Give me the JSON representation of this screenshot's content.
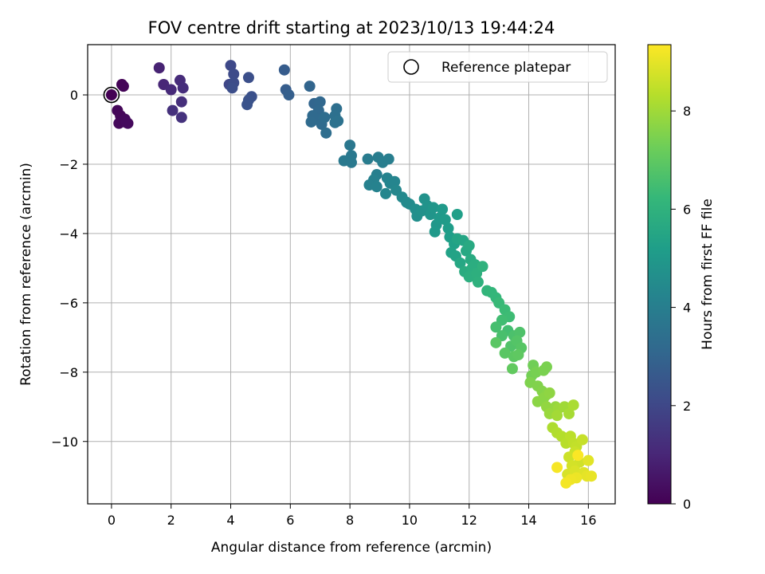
{
  "chart_data": {
    "type": "scatter",
    "title": "FOV centre drift starting at 2023/10/13 19:44:24",
    "xlabel": "Angular distance from reference (arcmin)",
    "ylabel": "Rotation from reference (arcmin)",
    "xlim": [
      -0.8,
      16.9
    ],
    "ylim": [
      -11.8,
      1.45
    ],
    "xticks": [
      0,
      2,
      4,
      6,
      8,
      10,
      12,
      14,
      16
    ],
    "yticks": [
      0,
      -2,
      -4,
      -6,
      -8,
      -10
    ],
    "xtick_labels": [
      "0",
      "2",
      "4",
      "6",
      "8",
      "10",
      "12",
      "14",
      "16"
    ],
    "ytick_labels": [
      "0",
      "−2",
      "−4",
      "−6",
      "−8",
      "−10"
    ],
    "grid": true,
    "legend": {
      "position": "top-right",
      "entries": [
        "Reference platepar"
      ]
    },
    "reference_point": {
      "x": 0,
      "y": 0,
      "label": "Reference platepar"
    },
    "colorbar": {
      "label": "Hours from first FF file",
      "range": [
        0,
        9.35
      ],
      "ticks": [
        0,
        2,
        4,
        6,
        8
      ],
      "tick_labels": [
        "0",
        "2",
        "4",
        "6",
        "8"
      ],
      "colormap": "viridis",
      "colors": [
        "#440154",
        "#482878",
        "#3e4a89",
        "#31688e",
        "#26828e",
        "#1f9e89",
        "#35b779",
        "#6ece58",
        "#b5de2b",
        "#fde725"
      ]
    },
    "series": [
      {
        "values": [
          [
            0.0,
            0.0,
            0.0
          ],
          [
            0.35,
            0.3,
            0.05
          ],
          [
            0.4,
            0.25,
            0.08
          ],
          [
            0.2,
            -0.45,
            0.12
          ],
          [
            0.3,
            -0.6,
            0.15
          ],
          [
            0.25,
            -0.82,
            0.18
          ],
          [
            0.45,
            -0.7,
            0.2
          ],
          [
            0.55,
            -0.82,
            0.22
          ],
          [
            0.5,
            -0.8,
            0.25
          ],
          [
            1.6,
            0.78,
            0.9
          ],
          [
            1.75,
            0.3,
            1.0
          ],
          [
            2.0,
            0.15,
            1.1
          ],
          [
            2.3,
            0.42,
            1.15
          ],
          [
            2.4,
            0.2,
            1.2
          ],
          [
            2.35,
            -0.2,
            1.25
          ],
          [
            2.05,
            -0.45,
            1.3
          ],
          [
            2.35,
            -0.65,
            1.35
          ],
          [
            3.95,
            0.3,
            2.0
          ],
          [
            4.0,
            0.85,
            2.05
          ],
          [
            4.1,
            0.6,
            2.1
          ],
          [
            4.1,
            0.35,
            2.15
          ],
          [
            4.05,
            0.2,
            2.2
          ],
          [
            4.6,
            0.5,
            2.25
          ],
          [
            4.7,
            -0.05,
            2.3
          ],
          [
            4.6,
            -0.15,
            2.35
          ],
          [
            4.55,
            -0.28,
            2.4
          ],
          [
            5.8,
            0.72,
            2.7
          ],
          [
            5.85,
            0.15,
            2.75
          ],
          [
            5.95,
            0.0,
            2.8
          ],
          [
            6.65,
            0.25,
            3.0
          ],
          [
            6.8,
            -0.25,
            3.05
          ],
          [
            7.0,
            -0.2,
            3.1
          ],
          [
            6.95,
            -0.45,
            3.15
          ],
          [
            6.75,
            -0.6,
            3.2
          ],
          [
            6.9,
            -0.7,
            3.2
          ],
          [
            6.7,
            -0.78,
            3.25
          ],
          [
            7.05,
            -0.85,
            3.25
          ],
          [
            7.15,
            -0.65,
            3.3
          ],
          [
            7.2,
            -1.1,
            3.35
          ],
          [
            7.55,
            -0.4,
            3.4
          ],
          [
            7.5,
            -0.6,
            3.45
          ],
          [
            7.6,
            -0.75,
            3.5
          ],
          [
            7.5,
            -0.8,
            3.5
          ],
          [
            8.0,
            -1.45,
            3.7
          ],
          [
            8.05,
            -1.75,
            3.75
          ],
          [
            7.8,
            -1.9,
            3.8
          ],
          [
            8.05,
            -1.95,
            3.8
          ],
          [
            8.6,
            -1.85,
            3.9
          ],
          [
            8.95,
            -1.8,
            3.95
          ],
          [
            9.1,
            -1.95,
            4.0
          ],
          [
            9.3,
            -1.85,
            4.0
          ],
          [
            8.9,
            -2.3,
            4.05
          ],
          [
            8.8,
            -2.45,
            4.1
          ],
          [
            8.65,
            -2.6,
            4.1
          ],
          [
            8.9,
            -2.65,
            4.15
          ],
          [
            9.25,
            -2.4,
            4.2
          ],
          [
            9.35,
            -2.55,
            4.25
          ],
          [
            9.5,
            -2.5,
            4.25
          ],
          [
            9.2,
            -2.85,
            4.3
          ],
          [
            9.55,
            -2.75,
            4.35
          ],
          [
            9.75,
            -2.95,
            4.4
          ],
          [
            9.9,
            -3.1,
            4.45
          ],
          [
            10.0,
            -3.15,
            4.5
          ],
          [
            10.2,
            -3.3,
            4.6
          ],
          [
            10.25,
            -3.5,
            4.65
          ],
          [
            10.4,
            -3.35,
            4.7
          ],
          [
            10.5,
            -3.0,
            4.75
          ],
          [
            10.6,
            -3.2,
            4.8
          ],
          [
            10.7,
            -3.45,
            4.85
          ],
          [
            10.8,
            -3.25,
            4.9
          ],
          [
            10.9,
            -3.75,
            4.95
          ],
          [
            10.85,
            -3.95,
            5.0
          ],
          [
            11.0,
            -3.55,
            5.0
          ],
          [
            11.1,
            -3.3,
            5.05
          ],
          [
            11.2,
            -3.6,
            5.1
          ],
          [
            11.3,
            -3.85,
            5.15
          ],
          [
            11.35,
            -4.1,
            5.2
          ],
          [
            11.6,
            -3.45,
            5.25
          ],
          [
            11.5,
            -4.3,
            5.3
          ],
          [
            11.4,
            -4.55,
            5.35
          ],
          [
            11.55,
            -4.65,
            5.4
          ],
          [
            11.6,
            -4.15,
            5.45
          ],
          [
            11.8,
            -4.2,
            5.5
          ],
          [
            11.7,
            -4.85,
            5.55
          ],
          [
            11.9,
            -4.5,
            5.6
          ],
          [
            12.0,
            -4.35,
            5.65
          ],
          [
            12.05,
            -4.75,
            5.7
          ],
          [
            11.85,
            -5.1,
            5.75
          ],
          [
            12.1,
            -5.0,
            5.8
          ],
          [
            12.2,
            -4.9,
            5.8
          ],
          [
            12.0,
            -5.25,
            5.85
          ],
          [
            12.25,
            -5.15,
            5.9
          ],
          [
            12.3,
            -5.4,
            5.95
          ],
          [
            12.45,
            -4.95,
            6.0
          ],
          [
            12.6,
            -5.65,
            6.1
          ],
          [
            12.75,
            -5.7,
            6.15
          ],
          [
            12.9,
            -5.85,
            6.2
          ],
          [
            13.0,
            -6.0,
            6.3
          ],
          [
            13.2,
            -6.2,
            6.35
          ],
          [
            13.35,
            -6.4,
            6.4
          ],
          [
            13.1,
            -6.5,
            6.45
          ],
          [
            13.3,
            -6.8,
            6.5
          ],
          [
            12.9,
            -6.7,
            6.55
          ],
          [
            13.1,
            -6.95,
            6.6
          ],
          [
            13.5,
            -6.95,
            6.65
          ],
          [
            13.7,
            -6.85,
            6.7
          ],
          [
            13.4,
            -7.25,
            6.75
          ],
          [
            13.6,
            -7.1,
            6.8
          ],
          [
            13.75,
            -7.3,
            6.85
          ],
          [
            12.9,
            -7.15,
            6.9
          ],
          [
            13.2,
            -7.45,
            6.9
          ],
          [
            13.5,
            -7.55,
            6.95
          ],
          [
            13.65,
            -7.5,
            7.0
          ],
          [
            13.45,
            -7.9,
            7.05
          ],
          [
            14.15,
            -7.8,
            7.3
          ],
          [
            14.1,
            -8.1,
            7.35
          ],
          [
            14.25,
            -8.0,
            7.4
          ],
          [
            14.5,
            -7.95,
            7.45
          ],
          [
            14.6,
            -7.85,
            7.45
          ],
          [
            14.05,
            -8.3,
            7.5
          ],
          [
            14.3,
            -8.4,
            7.55
          ],
          [
            14.45,
            -8.55,
            7.6
          ],
          [
            14.6,
            -8.65,
            7.65
          ],
          [
            14.3,
            -8.85,
            7.7
          ],
          [
            14.5,
            -8.75,
            7.7
          ],
          [
            14.7,
            -8.6,
            7.75
          ],
          [
            14.6,
            -9.0,
            7.8
          ],
          [
            14.9,
            -9.0,
            7.85
          ],
          [
            14.7,
            -9.2,
            7.9
          ],
          [
            15.0,
            -9.05,
            7.95
          ],
          [
            15.2,
            -9.0,
            8.0
          ],
          [
            14.95,
            -9.25,
            8.05
          ],
          [
            15.35,
            -9.2,
            8.1
          ],
          [
            15.5,
            -8.95,
            8.15
          ],
          [
            14.8,
            -9.6,
            8.2
          ],
          [
            14.95,
            -9.75,
            8.25
          ],
          [
            15.1,
            -9.85,
            8.3
          ],
          [
            15.25,
            -10.05,
            8.35
          ],
          [
            15.4,
            -9.85,
            8.4
          ],
          [
            15.5,
            -10.05,
            8.45
          ],
          [
            15.6,
            -10.15,
            8.5
          ],
          [
            15.8,
            -9.95,
            8.55
          ],
          [
            15.55,
            -10.3,
            8.6
          ],
          [
            15.35,
            -10.45,
            8.65
          ],
          [
            15.7,
            -10.6,
            8.7
          ],
          [
            15.45,
            -10.7,
            8.75
          ],
          [
            15.3,
            -10.95,
            8.8
          ],
          [
            15.55,
            -10.85,
            8.85
          ],
          [
            15.85,
            -10.9,
            8.9
          ],
          [
            16.0,
            -10.55,
            8.95
          ],
          [
            15.95,
            -11.0,
            9.0
          ],
          [
            16.1,
            -11.0,
            9.05
          ],
          [
            15.6,
            -11.05,
            9.1
          ],
          [
            15.4,
            -11.1,
            9.15
          ],
          [
            15.25,
            -11.2,
            9.2
          ],
          [
            14.95,
            -10.75,
            9.25
          ],
          [
            15.65,
            -10.4,
            9.3
          ]
        ]
      }
    ]
  }
}
